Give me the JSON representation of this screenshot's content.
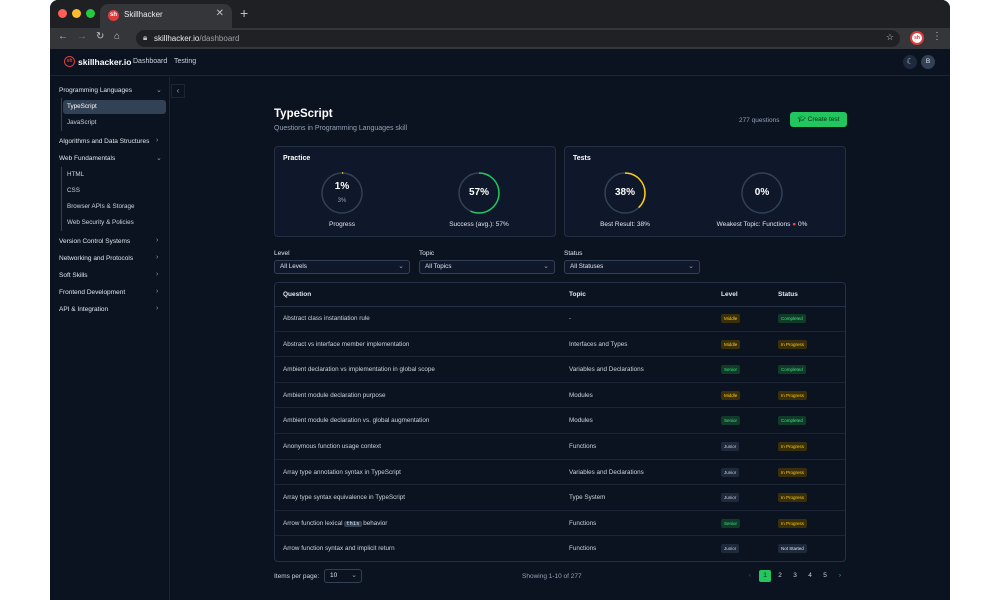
{
  "browser": {
    "tab_title": "Skillhacker",
    "tab_favicon": "sh",
    "url_host": "skillhacker.io",
    "url_path": "/dashboard",
    "profile": "sh"
  },
  "app": {
    "logo_mark": "sh",
    "logo_text": "skillhacker.io",
    "nav": [
      "Dashboard",
      "Testing"
    ],
    "avatar": "B"
  },
  "sidebar": {
    "categories": [
      {
        "label": "Programming Languages",
        "expanded": true,
        "items": [
          "TypeScript",
          "JavaScript"
        ],
        "active": "TypeScript"
      },
      {
        "label": "Algorithms and Data Structures",
        "expanded": false
      },
      {
        "label": "Web Fundamentals",
        "expanded": true,
        "items": [
          "HTML",
          "CSS",
          "Browser APIs & Storage",
          "Web Security & Policies"
        ]
      },
      {
        "label": "Version Control Systems",
        "expanded": false
      },
      {
        "label": "Networking and Protocols",
        "expanded": false
      },
      {
        "label": "Soft Skills",
        "expanded": false
      },
      {
        "label": "Frontend Development",
        "expanded": false
      },
      {
        "label": "API & Integration",
        "expanded": false
      }
    ]
  },
  "main": {
    "title": "TypeScript",
    "subtitle": "Questions in Programming Languages skill",
    "question_count": "277 questions",
    "create_label": "Create test"
  },
  "practice": {
    "title": "Practice",
    "progress_value": "1%",
    "progress_sub": "3%",
    "progress_fraction": 0.01,
    "progress_label": "Progress",
    "success_value": "57%",
    "success_fraction": 0.57,
    "success_label": "Success (avg.): 57%"
  },
  "tests": {
    "title": "Tests",
    "best_value": "38%",
    "best_fraction": 0.38,
    "best_label": "Best Result: 38%",
    "weakest_value": "0%",
    "weakest_fraction": 0,
    "weakest_label": "Weakest Topic: Functions",
    "weakest_suffix": "0%"
  },
  "filters": {
    "level_label": "Level",
    "level_value": "All Levels",
    "topic_label": "Topic",
    "topic_value": "All Topics",
    "status_label": "Status",
    "status_value": "All Statuses"
  },
  "table": {
    "headers": [
      "Question",
      "Topic",
      "Level",
      "Status"
    ],
    "rows": [
      {
        "q": "Abstract class instantiation rule",
        "topic": "-",
        "level": "Middle",
        "status": "Completed"
      },
      {
        "q": "Abstract vs interface member implementation",
        "topic": "Interfaces and Types",
        "level": "Middle",
        "status": "In Progress"
      },
      {
        "q": "Ambient declaration vs implementation in global scope",
        "topic": "Variables and Declarations",
        "level": "Senior",
        "status": "Completed"
      },
      {
        "q": "Ambient module declaration purpose",
        "topic": "Modules",
        "level": "Middle",
        "status": "In Progress"
      },
      {
        "q": "Ambient module declaration vs. global augmentation",
        "topic": "Modules",
        "level": "Senior",
        "status": "Completed"
      },
      {
        "q": "Anonymous function usage context",
        "topic": "Functions",
        "level": "Junior",
        "status": "In Progress"
      },
      {
        "q": "Array type annotation syntax in TypeScript",
        "topic": "Variables and Declarations",
        "level": "Junior",
        "status": "In Progress"
      },
      {
        "q": "Array type syntax equivalence in TypeScript",
        "topic": "Type System",
        "level": "Junior",
        "status": "In Progress"
      },
      {
        "q_pre": "Arrow function lexical ",
        "q_code": "this",
        "q_post": " behavior",
        "topic": "Functions",
        "level": "Senior",
        "status": "In Progress"
      },
      {
        "q": "Arrow function syntax and implicit return",
        "topic": "Functions",
        "level": "Junior",
        "status": "Not Started"
      }
    ]
  },
  "pagination": {
    "items_label": "Items per page:",
    "items_value": "10",
    "showing": "Showing 1-10 of 277",
    "pages": [
      "1",
      "2",
      "3",
      "4",
      "5"
    ],
    "current": "1"
  },
  "colors": {
    "accent": "#22c55e",
    "warning": "#facc15",
    "background": "#0b1220"
  }
}
